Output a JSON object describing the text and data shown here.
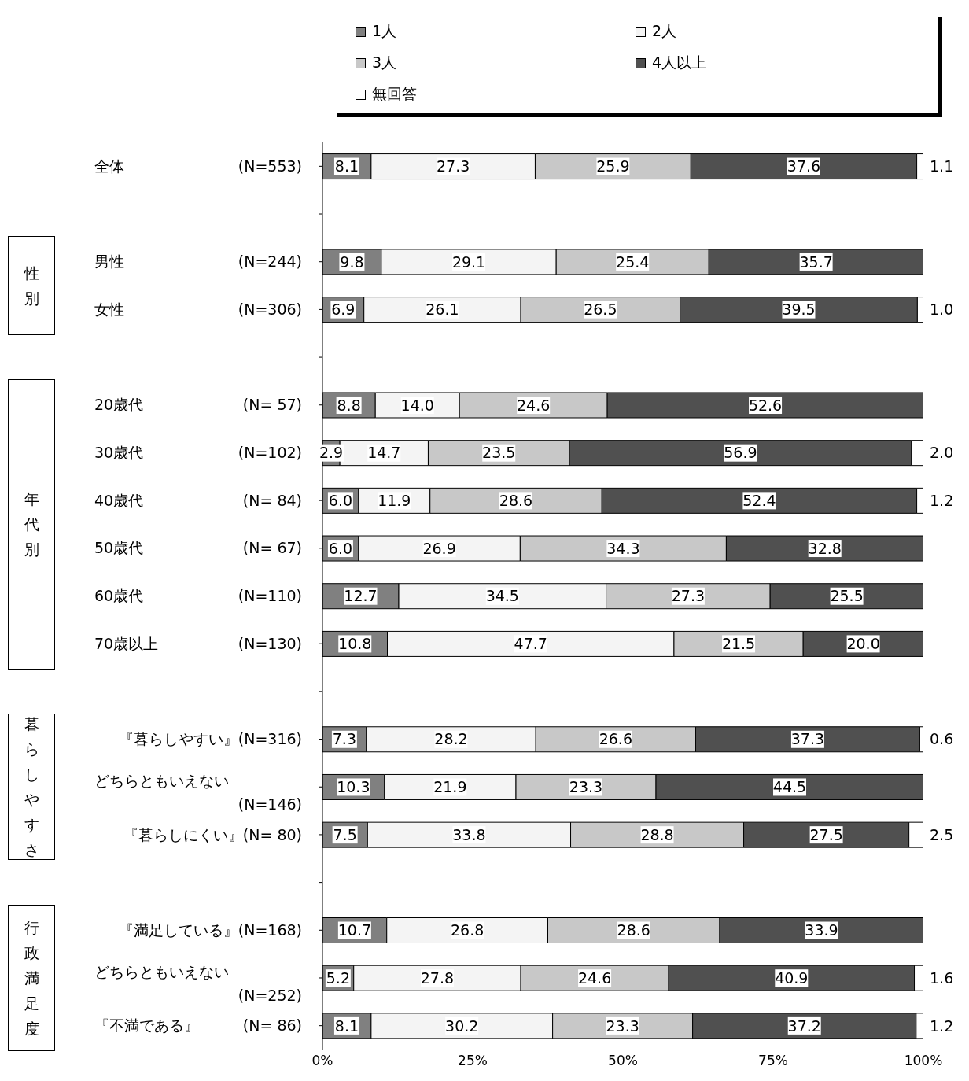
{
  "chart_data": {
    "type": "bar",
    "orientation": "horizontal",
    "stacked": true,
    "legend": "top",
    "grid": false,
    "categories": [
      "全体 (N=553)",
      null,
      "男性 (N=244)",
      "女性 (N=306)",
      null,
      "20歳代 (N= 57)",
      "30歳代 (N=102)",
      "40歳代 (N= 84)",
      "50歳代 (N= 67)",
      "60歳代 (N=110)",
      "70歳以上 (N=130)",
      null,
      "『暮らしやすい』(N=316)",
      "どちらともいえない (N=146)",
      "『暮らしにくい』(N= 80)",
      null,
      "『満足している』(N=168)",
      "どちらともいえない (N=252)",
      "『不満である』 (N= 86)"
    ],
    "xlim": [
      0,
      100
    ],
    "xticks": [
      {
        "value": 0,
        "label": "0%"
      },
      {
        "value": 25,
        "label": "25%"
      },
      {
        "value": 50,
        "label": "50%"
      },
      {
        "value": 75,
        "label": "75%"
      },
      {
        "value": 100,
        "label": "100%"
      }
    ],
    "annotations": [
      "性別",
      "年代別",
      "暮らしやすさ",
      "行政満足度"
    ],
    "series": [
      {
        "name": "1人",
        "color": "#808080",
        "values": [
          8.1,
          null,
          9.8,
          6.9,
          null,
          8.8,
          2.9,
          6.0,
          6.0,
          12.7,
          10.8,
          null,
          7.3,
          10.3,
          7.5,
          null,
          10.7,
          5.2,
          8.1
        ],
        "value_labels": [
          "8.1",
          null,
          "9.8",
          "6.9",
          null,
          "8.8",
          "2.9",
          "6.0",
          "6.0",
          "12.7",
          "10.8",
          null,
          "7.3",
          "10.3",
          "7.5",
          null,
          "10.7",
          "5.2",
          "8.1"
        ]
      },
      {
        "name": "2人",
        "color": "#f4f4f4",
        "values": [
          27.3,
          null,
          29.1,
          26.1,
          null,
          14.0,
          14.7,
          11.9,
          26.9,
          34.5,
          47.7,
          null,
          28.2,
          21.9,
          33.8,
          null,
          26.8,
          27.8,
          30.2
        ],
        "value_labels": [
          "27.3",
          null,
          "29.1",
          "26.1",
          null,
          "14.0",
          "14.7",
          "11.9",
          "26.9",
          "34.5",
          "47.7",
          null,
          "28.2",
          "21.9",
          "33.8",
          null,
          "26.8",
          "27.8",
          "30.2"
        ]
      },
      {
        "name": "3人",
        "color": "#c8c8c8",
        "values": [
          25.9,
          null,
          25.4,
          26.5,
          null,
          24.6,
          23.5,
          28.6,
          34.3,
          27.3,
          21.5,
          null,
          26.6,
          23.3,
          28.8,
          null,
          28.6,
          24.6,
          23.3
        ],
        "value_labels": [
          "25.9",
          null,
          "25.4",
          "26.5",
          null,
          "24.6",
          "23.5",
          "28.6",
          "34.3",
          "27.3",
          "21.5",
          null,
          "26.6",
          "23.3",
          "28.8",
          null,
          "28.6",
          "24.6",
          "23.3"
        ]
      },
      {
        "name": "4人以上",
        "color": "#505050",
        "values": [
          37.6,
          null,
          35.7,
          39.5,
          null,
          52.6,
          56.9,
          52.4,
          32.8,
          25.5,
          20.0,
          null,
          37.3,
          44.5,
          27.5,
          null,
          33.9,
          40.9,
          37.2
        ],
        "value_labels": [
          "37.6",
          null,
          "35.7",
          "39.5",
          null,
          "52.6",
          "56.9",
          "52.4",
          "32.8",
          "25.5",
          "20.0",
          null,
          "37.3",
          "44.5",
          "27.5",
          null,
          "33.9",
          "40.9",
          "37.2"
        ]
      },
      {
        "name": "無回答",
        "color": "#ffffff",
        "values": [
          1.1,
          null,
          null,
          1.0,
          null,
          null,
          2.0,
          1.2,
          null,
          null,
          null,
          null,
          0.6,
          null,
          2.5,
          null,
          null,
          1.6,
          1.2
        ],
        "value_labels": [
          "1.1",
          null,
          null,
          "1.0",
          null,
          null,
          "2.0",
          "1.2",
          null,
          null,
          null,
          null,
          "0.6",
          null,
          "2.5",
          null,
          null,
          "1.6",
          "1.2"
        ]
      }
    ]
  }
}
